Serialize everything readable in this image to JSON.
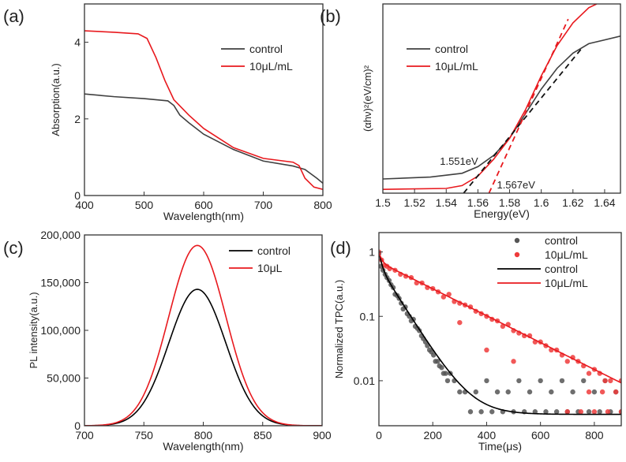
{
  "chart_data": [
    {
      "panel": "(a)",
      "type": "line",
      "xlabel": "Wavelength(nm)",
      "ylabel": "Absorption(a.u.)",
      "xlim": [
        400,
        800
      ],
      "ylim": [
        0,
        5
      ],
      "xticks": [
        400,
        500,
        600,
        700,
        800
      ],
      "yticks": [
        0,
        2,
        4
      ],
      "legend": "top-right",
      "series": [
        {
          "name": "control",
          "color": "#404040",
          "points": [
            [
              400,
              2.65
            ],
            [
              450,
              2.58
            ],
            [
              500,
              2.53
            ],
            [
              540,
              2.47
            ],
            [
              550,
              2.35
            ],
            [
              560,
              2.1
            ],
            [
              575,
              1.9
            ],
            [
              600,
              1.6
            ],
            [
              650,
              1.2
            ],
            [
              700,
              0.9
            ],
            [
              750,
              0.77
            ],
            [
              770,
              0.68
            ],
            [
              790,
              0.45
            ],
            [
              800,
              0.32
            ]
          ]
        },
        {
          "name": "10μL/mL",
          "color": "#e8191e",
          "points": [
            [
              400,
              4.3
            ],
            [
              450,
              4.26
            ],
            [
              490,
              4.22
            ],
            [
              505,
              4.1
            ],
            [
              520,
              3.6
            ],
            [
              535,
              3.0
            ],
            [
              550,
              2.5
            ],
            [
              575,
              2.1
            ],
            [
              600,
              1.75
            ],
            [
              650,
              1.25
            ],
            [
              700,
              0.97
            ],
            [
              750,
              0.87
            ],
            [
              760,
              0.78
            ],
            [
              770,
              0.45
            ],
            [
              785,
              0.22
            ],
            [
              800,
              0.16
            ]
          ]
        }
      ]
    },
    {
      "panel": "(b)",
      "type": "line",
      "xlabel": "Energy(eV)",
      "ylabel": "(αhν)²(eV/cm)²",
      "xlim": [
        1.5,
        1.65
      ],
      "ylim": [
        0,
        10
      ],
      "xticks": [
        1.5,
        1.52,
        1.54,
        1.56,
        1.58,
        1.6,
        1.62,
        1.64
      ],
      "yticks": [],
      "legend": "top-left",
      "series": [
        {
          "name": "control",
          "color": "#404040",
          "points": [
            [
              1.5,
              0.75
            ],
            [
              1.53,
              0.85
            ],
            [
              1.55,
              1.05
            ],
            [
              1.56,
              1.4
            ],
            [
              1.57,
              2.0
            ],
            [
              1.58,
              2.9
            ],
            [
              1.59,
              4.2
            ],
            [
              1.6,
              5.5
            ],
            [
              1.61,
              6.6
            ],
            [
              1.62,
              7.4
            ],
            [
              1.63,
              7.9
            ],
            [
              1.65,
              8.3
            ]
          ]
        },
        {
          "name": "10μL/mL",
          "color": "#e8191e",
          "points": [
            [
              1.5,
              0.2
            ],
            [
              1.54,
              0.25
            ],
            [
              1.55,
              0.4
            ],
            [
              1.56,
              0.9
            ],
            [
              1.57,
              1.8
            ],
            [
              1.58,
              2.9
            ],
            [
              1.59,
              4.4
            ],
            [
              1.6,
              6.2
            ],
            [
              1.61,
              7.8
            ],
            [
              1.62,
              9.0
            ],
            [
              1.63,
              9.8
            ],
            [
              1.635,
              10
            ]
          ]
        }
      ],
      "tangents": [
        {
          "color": "#111",
          "from": [
            1.551,
            0
          ],
          "to": [
            1.625,
            7.6
          ]
        },
        {
          "color": "#e8191e",
          "from": [
            1.567,
            0
          ],
          "to": [
            1.617,
            9.2
          ]
        }
      ],
      "annotations": [
        {
          "text": "1.551eV",
          "at": [
            1.536,
            1.5
          ]
        },
        {
          "text": "1.567eV",
          "at": [
            1.572,
            0.25
          ]
        }
      ]
    },
    {
      "panel": "(c)",
      "type": "line",
      "xlabel": "Wavelength(nm)",
      "ylabel": "PL intensity(a.u.)",
      "xlim": [
        700,
        900
      ],
      "ylim": [
        0,
        200000
      ],
      "xticks": [
        700,
        750,
        800,
        850,
        900
      ],
      "yticks": [
        0,
        50000,
        100000,
        150000,
        200000
      ],
      "ytick_labels": [
        "0",
        "50,000",
        "100,000",
        "150,000",
        "200,000"
      ],
      "legend": "top-right",
      "series": [
        {
          "name": "control",
          "color": "#000000",
          "gaussian": {
            "center": 795,
            "sigma": 24,
            "peak": 143000
          }
        },
        {
          "name": "10μL",
          "color": "#e8191e",
          "gaussian": {
            "center": 795,
            "sigma": 24,
            "peak": 189000
          }
        }
      ]
    },
    {
      "panel": "(d)",
      "type": "scatter",
      "xlabel": "Time(μs)",
      "ylabel": "Normalized TPC(a.u.)",
      "xlim": [
        0,
        900
      ],
      "ylim": [
        0.002,
        2
      ],
      "yscale": "log",
      "xticks": [
        0,
        200,
        400,
        600,
        800
      ],
      "yticks": [
        1,
        0.1,
        0.01
      ],
      "ytick_labels": [
        "1",
        "0.1",
        "0.01"
      ],
      "legend": "top-right",
      "scatter": [
        {
          "name": "control",
          "color": "#555555",
          "points": [
            [
              0,
              0.95
            ],
            [
              8,
              0.6
            ],
            [
              15,
              0.52
            ],
            [
              23,
              0.45
            ],
            [
              30,
              0.4
            ],
            [
              38,
              0.36
            ],
            [
              45,
              0.31
            ],
            [
              53,
              0.28
            ],
            [
              60,
              0.22
            ],
            [
              68,
              0.21
            ],
            [
              75,
              0.19
            ],
            [
              83,
              0.16
            ],
            [
              90,
              0.13
            ],
            [
              98,
              0.14
            ],
            [
              105,
              0.11
            ],
            [
              113,
              0.1
            ],
            [
              120,
              0.085
            ],
            [
              128,
              0.09
            ],
            [
              135,
              0.07
            ],
            [
              143,
              0.065
            ],
            [
              150,
              0.06
            ],
            [
              158,
              0.05
            ],
            [
              165,
              0.045
            ],
            [
              173,
              0.04
            ],
            [
              180,
              0.035
            ],
            [
              188,
              0.03
            ],
            [
              195,
              0.028
            ],
            [
              203,
              0.025
            ],
            [
              210,
              0.02
            ],
            [
              218,
              0.02
            ],
            [
              225,
              0.017
            ],
            [
              233,
              0.016
            ],
            [
              240,
              0.013
            ],
            [
              248,
              0.013
            ],
            [
              255,
              0.01
            ],
            [
              265,
              0.013
            ],
            [
              280,
              0.01
            ],
            [
              300,
              0.0067
            ],
            [
              320,
              0.0067
            ],
            [
              340,
              0.0033
            ],
            [
              360,
              0.0067
            ],
            [
              380,
              0.0033
            ],
            [
              400,
              0.01
            ],
            [
              420,
              0.0033
            ],
            [
              440,
              0.0067
            ],
            [
              460,
              0.0033
            ],
            [
              480,
              0.0067
            ],
            [
              500,
              0.0033
            ],
            [
              520,
              0.01
            ],
            [
              540,
              0.0033
            ],
            [
              560,
              0.0067
            ],
            [
              580,
              0.0033
            ],
            [
              600,
              0.01
            ],
            [
              620,
              0.0033
            ],
            [
              640,
              0.0067
            ],
            [
              660,
              0.0033
            ],
            [
              680,
              0.01
            ],
            [
              700,
              0.0033
            ],
            [
              720,
              0.0067
            ],
            [
              740,
              0.0033
            ],
            [
              760,
              0.01
            ],
            [
              780,
              0.0033
            ],
            [
              800,
              0.0067
            ],
            [
              820,
              0.0033
            ],
            [
              840,
              0.01
            ],
            [
              860,
              0.0033
            ],
            [
              880,
              0.0067
            ],
            [
              900,
              0.0033
            ]
          ]
        },
        {
          "name": "10μL/mL",
          "color": "#ee3b3b",
          "points": [
            [
              0,
              1.0
            ],
            [
              10,
              0.75
            ],
            [
              20,
              0.62
            ],
            [
              30,
              0.6
            ],
            [
              40,
              0.55
            ],
            [
              60,
              0.52
            ],
            [
              80,
              0.45
            ],
            [
              100,
              0.42
            ],
            [
              120,
              0.4
            ],
            [
              140,
              0.33
            ],
            [
              160,
              0.33
            ],
            [
              180,
              0.28
            ],
            [
              200,
              0.27
            ],
            [
              220,
              0.24
            ],
            [
              240,
              0.2
            ],
            [
              260,
              0.22
            ],
            [
              280,
              0.17
            ],
            [
              300,
              0.16
            ],
            [
              320,
              0.15
            ],
            [
              340,
              0.14
            ],
            [
              360,
              0.12
            ],
            [
              380,
              0.11
            ],
            [
              400,
              0.1
            ],
            [
              420,
              0.09
            ],
            [
              440,
              0.085
            ],
            [
              460,
              0.07
            ],
            [
              480,
              0.075
            ],
            [
              500,
              0.06
            ],
            [
              520,
              0.055
            ],
            [
              540,
              0.05
            ],
            [
              560,
              0.05
            ],
            [
              580,
              0.04
            ],
            [
              600,
              0.04
            ],
            [
              620,
              0.035
            ],
            [
              640,
              0.03
            ],
            [
              660,
              0.03
            ],
            [
              680,
              0.025
            ],
            [
              700,
              0.02
            ],
            [
              720,
              0.023
            ],
            [
              740,
              0.02
            ],
            [
              760,
              0.017
            ],
            [
              780,
              0.013
            ],
            [
              800,
              0.015
            ],
            [
              820,
              0.013
            ],
            [
              840,
              0.01
            ],
            [
              860,
              0.01
            ],
            [
              880,
              0.0067
            ],
            [
              900,
              0.01
            ],
            [
              700,
              0.0033
            ],
            [
              750,
              0.0033
            ],
            [
              800,
              0.0033
            ],
            [
              850,
              0.0033
            ],
            [
              900,
              0.0033
            ],
            [
              780,
              0.0067
            ],
            [
              830,
              0.0067
            ],
            [
              500,
              0.02
            ],
            [
              400,
              0.03
            ],
            [
              300,
              0.08
            ]
          ]
        }
      ],
      "series": [
        {
          "name": "control",
          "color": "#000000",
          "fit": {
            "a1": 0.4,
            "tau1": 10,
            "a2": 0.6,
            "tau2": 65,
            "y0": 0.003
          }
        },
        {
          "name": "10μL/mL",
          "color": "#e8191e",
          "fit": {
            "a1": 0.3,
            "tau1": 10,
            "a2": 0.7,
            "tau2": 208,
            "y0": 0
          }
        }
      ]
    }
  ]
}
